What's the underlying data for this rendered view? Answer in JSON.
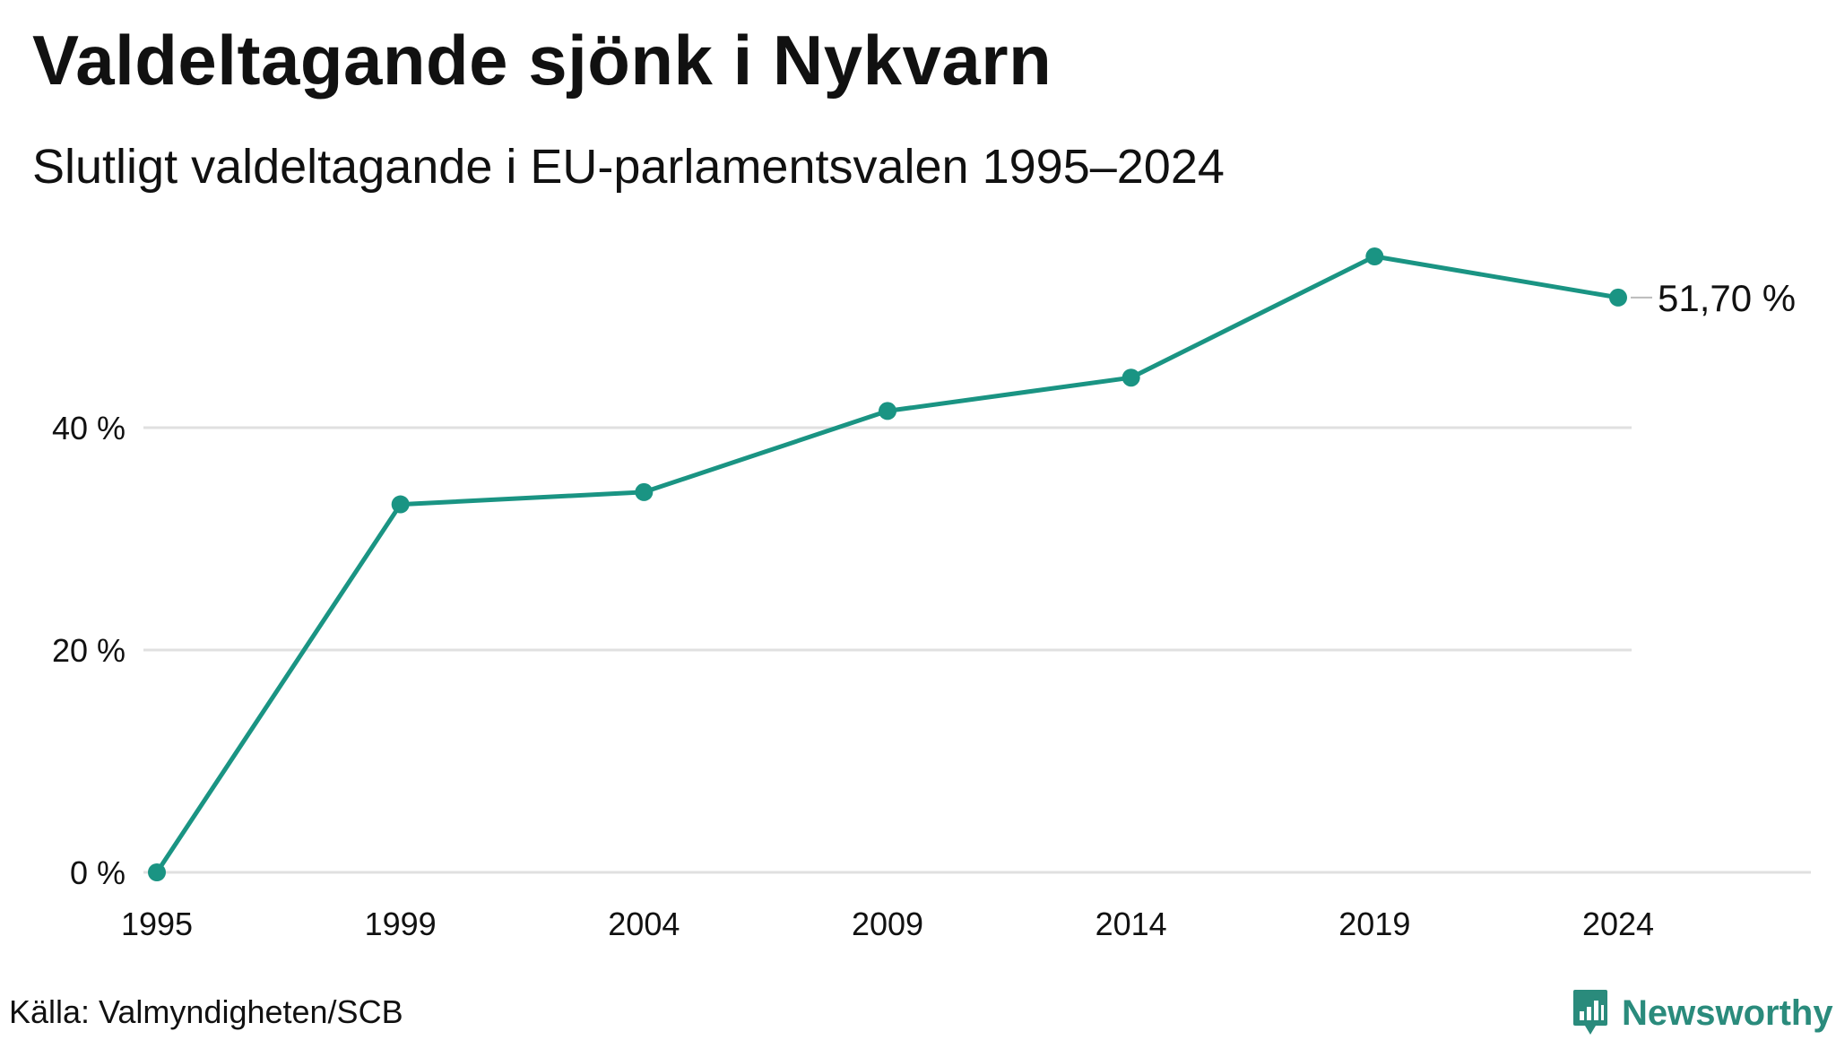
{
  "title": "Valdeltagande sjönk i Nykvarn",
  "subtitle": "Slutligt valdeltagande i EU-parlamentsvalen 1995–2024",
  "source": "Källa: Valmyndigheten/SCB",
  "brand": {
    "name": "Newsworthy",
    "icon": "newsworthy-logo-icon"
  },
  "colors": {
    "line": "#1a9483",
    "grid": "#e0e0e0",
    "text": "#111111",
    "brand": "#2a8b7c"
  },
  "chart_data": {
    "type": "line",
    "x": [
      "1995",
      "1999",
      "2004",
      "2009",
      "2014",
      "2019",
      "2024"
    ],
    "series": [
      {
        "values": [
          0,
          33.1,
          34.2,
          41.5,
          44.5,
          55.4,
          51.7
        ]
      }
    ],
    "ylim": [
      0,
      58
    ],
    "yticks": [
      0,
      20,
      40
    ],
    "ytick_labels": [
      "0 %",
      "20 %",
      "40 %"
    ],
    "end_label": "51,70 %",
    "grid": true,
    "xlabel": "",
    "ylabel": ""
  }
}
